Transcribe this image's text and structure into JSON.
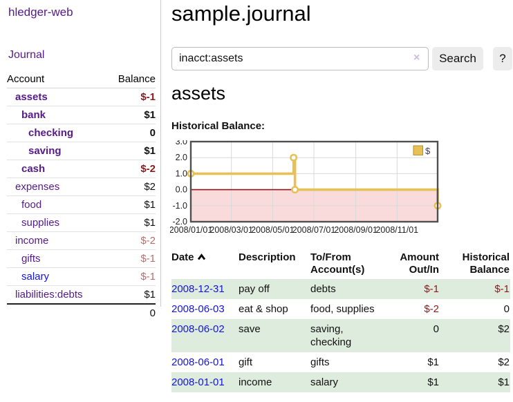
{
  "brand": "hledger-web",
  "sidebar": {
    "nav_journal": "Journal",
    "accounts": {
      "header_account": "Account",
      "header_balance": "Balance",
      "rows": [
        {
          "name": "assets",
          "balance": "$-1"
        },
        {
          "name": "bank",
          "balance": "$1"
        },
        {
          "name": "checking",
          "balance": "0"
        },
        {
          "name": "saving",
          "balance": "$1"
        },
        {
          "name": "cash",
          "balance": "$-2"
        },
        {
          "name": "expenses",
          "balance": "$2"
        },
        {
          "name": "food",
          "balance": "$1"
        },
        {
          "name": "supplies",
          "balance": "$1"
        },
        {
          "name": "income",
          "balance": "$-2"
        },
        {
          "name": "gifts",
          "balance": "$-1"
        },
        {
          "name": "salary",
          "balance": "$-1"
        },
        {
          "name": "liabilities:debts",
          "balance": "$1"
        }
      ],
      "total": "0"
    }
  },
  "main": {
    "title": "sample.journal",
    "search": {
      "value": "inacct:assets",
      "clear_icon": "×",
      "search_label": "Search",
      "help_label": "?"
    },
    "heading": "assets",
    "chart_title": "Historical Balance:"
  },
  "chart_data": {
    "type": "line",
    "step": true,
    "title": "Historical Balance:",
    "series": [
      {
        "name": "$",
        "color": "#e7c156",
        "points": [
          {
            "date": "2008-01-01",
            "value": 1
          },
          {
            "date": "2008-06-01",
            "value": 2
          },
          {
            "date": "2008-06-03",
            "value": 0
          },
          {
            "date": "2008-12-31",
            "value": -1
          }
        ]
      }
    ],
    "x_range": [
      "2008-01-01",
      "2008-12-31"
    ],
    "ylim": [
      -2,
      3
    ],
    "yticks": [
      "3.0",
      "2.0",
      "1.0",
      "0.0",
      "-1.0",
      "-2.0"
    ],
    "xticks": [
      "2008/01/01",
      "2008/03/01",
      "2008/05/01",
      "2008/07/01",
      "2008/09/01",
      "2008/11/01"
    ],
    "legend": {
      "label": "$",
      "position": "top-right"
    },
    "grid": true,
    "negative_fill": "#fadbdb",
    "zero_line_color": "#8e1515",
    "frame_color": "#4f4f4f",
    "grid_color": "#d9d9d9"
  },
  "register": {
    "headers": {
      "date": "Date",
      "description": "Description",
      "accounts": "To/From Account(s)",
      "amount": "Amount Out/In",
      "balance": "Historical Balance"
    },
    "rows": [
      {
        "date": "2008-12-31",
        "description": "pay off",
        "accounts": "debts",
        "amount": "$-1",
        "balance": "$-1"
      },
      {
        "date": "2008-06-03",
        "description": "eat & shop",
        "accounts": "food, supplies",
        "amount": "$-2",
        "balance": "0"
      },
      {
        "date": "2008-06-02",
        "description": "save",
        "accounts": "saving, checking",
        "amount": "0",
        "balance": "$2"
      },
      {
        "date": "2008-06-01",
        "description": "gift",
        "accounts": "gifts",
        "amount": "$1",
        "balance": "$2"
      },
      {
        "date": "2008-01-01",
        "description": "income",
        "accounts": "salary",
        "amount": "$1",
        "balance": "$1"
      }
    ]
  },
  "colors": {
    "link_visited_purple": "#551a8b",
    "link_blue": "#1414dc",
    "negative_dark_red": "#8b1a1a",
    "negative_muted_rose": "#bb6d6d",
    "row_stripe_green": "#ddecdd",
    "chart_line_gold": "#e7c156"
  }
}
